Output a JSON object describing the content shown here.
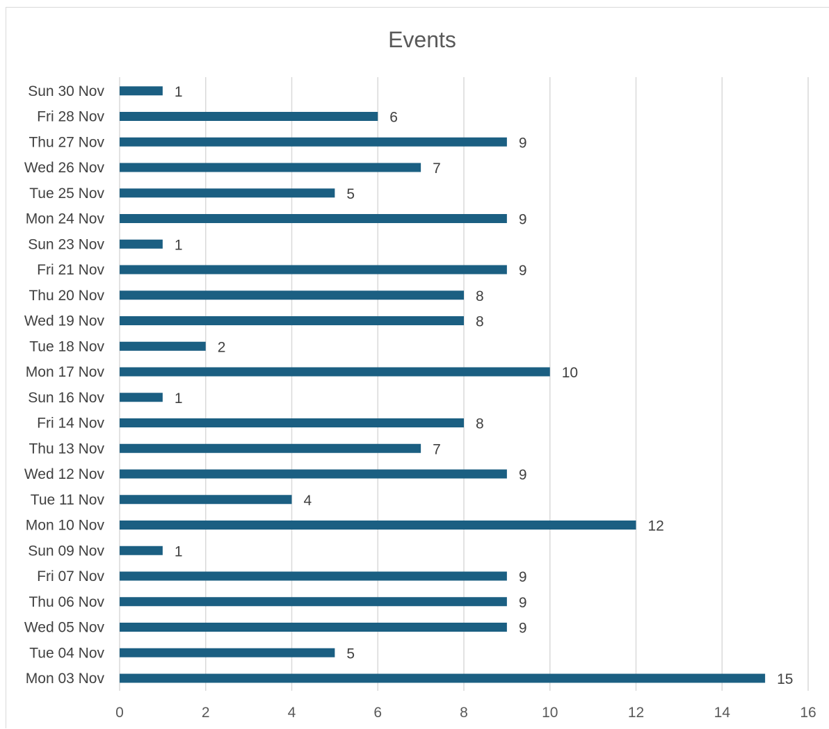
{
  "chart_data": {
    "type": "bar",
    "orientation": "horizontal",
    "title": "Events",
    "xlabel": "",
    "ylabel": "",
    "xlim": [
      0,
      16
    ],
    "x_ticks": [
      "0",
      "2",
      "4",
      "6",
      "8",
      "10",
      "12",
      "14",
      "16"
    ],
    "grid": true,
    "legend": "none",
    "bar_color": "#1b5f82",
    "categories": [
      "Mon 03 Nov",
      "Tue 04 Nov",
      "Wed 05 Nov",
      "Thu 06 Nov",
      "Fri 07 Nov",
      "Sun 09 Nov",
      "Mon 10 Nov",
      "Tue 11 Nov",
      "Wed 12 Nov",
      "Thu 13 Nov",
      "Fri 14 Nov",
      "Sun 16 Nov",
      "Mon 17 Nov",
      "Tue 18 Nov",
      "Wed 19 Nov",
      "Thu 20 Nov",
      "Fri 21 Nov",
      "Sun 23 Nov",
      "Mon 24 Nov",
      "Tue 25 Nov",
      "Wed 26 Nov",
      "Thu 27 Nov",
      "Fri 28 Nov",
      "Sun 30 Nov"
    ],
    "values": [
      15,
      5,
      9,
      9,
      9,
      1,
      12,
      4,
      9,
      7,
      8,
      1,
      10,
      2,
      8,
      8,
      9,
      1,
      9,
      5,
      7,
      9,
      6,
      1
    ]
  }
}
